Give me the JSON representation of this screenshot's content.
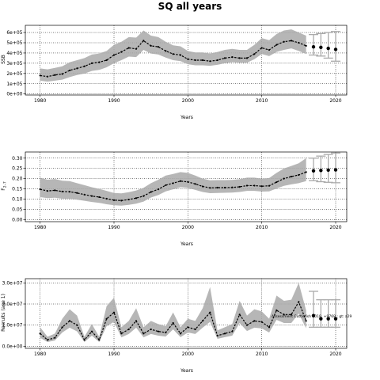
{
  "figure": {
    "title": "SQ all years"
  },
  "chart_data": [
    {
      "type": "line",
      "name": "ssb",
      "xlabel": "Years",
      "ylabel": "SSB",
      "xlim": [
        1978,
        2021.5
      ],
      "ylim": [
        -10000,
        670000
      ],
      "xticks": [
        1980,
        1990,
        2000,
        2010,
        2020
      ],
      "yticks": [
        0,
        100000,
        200000,
        300000,
        400000,
        500000,
        600000
      ],
      "ytick_labels": [
        "0e+00",
        "1e+05",
        "2e+05",
        "3e+05",
        "4e+05",
        "5e+05",
        "6e+05"
      ],
      "grid": true,
      "x": [
        1980,
        1981,
        1982,
        1983,
        1984,
        1985,
        1986,
        1987,
        1988,
        1989,
        1990,
        1991,
        1992,
        1993,
        1994,
        1995,
        1996,
        1997,
        1998,
        1999,
        2000,
        2001,
        2002,
        2003,
        2004,
        2005,
        2006,
        2007,
        2008,
        2009,
        2010,
        2011,
        2012,
        2013,
        2014,
        2015,
        2016
      ],
      "y": [
        180000,
        170000,
        185000,
        195000,
        230000,
        250000,
        270000,
        300000,
        310000,
        330000,
        380000,
        410000,
        450000,
        440000,
        520000,
        470000,
        460000,
        420000,
        390000,
        380000,
        340000,
        330000,
        330000,
        320000,
        330000,
        350000,
        360000,
        350000,
        350000,
        390000,
        450000,
        430000,
        480000,
        510000,
        520000,
        500000,
        470000
      ],
      "lower": [
        130000,
        120000,
        130000,
        140000,
        165000,
        185000,
        200000,
        225000,
        235000,
        260000,
        300000,
        330000,
        365000,
        360000,
        430000,
        395000,
        385000,
        355000,
        330000,
        320000,
        290000,
        280000,
        280000,
        275000,
        285000,
        300000,
        310000,
        305000,
        305000,
        340000,
        390000,
        370000,
        410000,
        430000,
        445000,
        420000,
        390000
      ],
      "upper": [
        250000,
        240000,
        255000,
        270000,
        310000,
        330000,
        350000,
        385000,
        395000,
        420000,
        480000,
        510000,
        555000,
        550000,
        620000,
        570000,
        555000,
        510000,
        475000,
        465000,
        420000,
        405000,
        405000,
        395000,
        410000,
        430000,
        440000,
        430000,
        430000,
        480000,
        545000,
        525000,
        585000,
        620000,
        630000,
        600000,
        570000
      ],
      "projection": {
        "x": [
          2017,
          2018,
          2019,
          2020
        ],
        "y": [
          460000,
          455000,
          445000,
          435000
        ],
        "lower": [
          380000,
          370000,
          350000,
          320000
        ],
        "upper": [
          580000,
          590000,
          600000,
          610000
        ]
      },
      "band_color": "#a9a9a9",
      "line_color": "#000000"
    },
    {
      "type": "line",
      "name": "fbar",
      "xlabel": "Years",
      "ylabel": "F",
      "ylabel_sub": "2–7",
      "xlim": [
        1978,
        2021.5
      ],
      "ylim": [
        -0.01,
        0.33
      ],
      "xticks": [
        1980,
        1990,
        2000,
        2010,
        2020
      ],
      "yticks": [
        0.0,
        0.05,
        0.1,
        0.15,
        0.2,
        0.25,
        0.3
      ],
      "ytick_labels": [
        "0.00",
        "0.05",
        "0.10",
        "0.15",
        "0.20",
        "0.25",
        "0.30"
      ],
      "grid": true,
      "x": [
        1980,
        1981,
        1982,
        1983,
        1984,
        1985,
        1986,
        1987,
        1988,
        1989,
        1990,
        1991,
        1992,
        1993,
        1994,
        1995,
        1996,
        1997,
        1998,
        1999,
        2000,
        2001,
        2002,
        2003,
        2004,
        2005,
        2006,
        2007,
        2008,
        2009,
        2010,
        2011,
        2012,
        2013,
        2014,
        2015,
        2016
      ],
      "y": [
        0.148,
        0.14,
        0.143,
        0.137,
        0.136,
        0.13,
        0.122,
        0.115,
        0.11,
        0.102,
        0.095,
        0.093,
        0.098,
        0.105,
        0.115,
        0.135,
        0.148,
        0.168,
        0.178,
        0.188,
        0.184,
        0.174,
        0.162,
        0.155,
        0.156,
        0.156,
        0.157,
        0.16,
        0.166,
        0.166,
        0.163,
        0.165,
        0.183,
        0.2,
        0.21,
        0.218,
        0.232
      ],
      "lower": [
        0.11,
        0.105,
        0.107,
        0.102,
        0.101,
        0.097,
        0.092,
        0.086,
        0.082,
        0.075,
        0.07,
        0.068,
        0.072,
        0.078,
        0.088,
        0.108,
        0.12,
        0.138,
        0.148,
        0.158,
        0.155,
        0.145,
        0.135,
        0.129,
        0.13,
        0.131,
        0.132,
        0.135,
        0.14,
        0.14,
        0.137,
        0.138,
        0.152,
        0.165,
        0.172,
        0.178,
        0.188
      ],
      "upper": [
        0.205,
        0.195,
        0.198,
        0.19,
        0.188,
        0.178,
        0.168,
        0.158,
        0.15,
        0.14,
        0.13,
        0.128,
        0.134,
        0.142,
        0.155,
        0.178,
        0.195,
        0.215,
        0.223,
        0.232,
        0.228,
        0.215,
        0.2,
        0.192,
        0.193,
        0.193,
        0.194,
        0.197,
        0.205,
        0.205,
        0.2,
        0.203,
        0.228,
        0.25,
        0.262,
        0.275,
        0.3
      ],
      "projection": {
        "x": [
          2017,
          2018,
          2019,
          2020
        ],
        "y": [
          0.238,
          0.24,
          0.242,
          0.243
        ],
        "lower": [
          0.19,
          0.185,
          0.182,
          0.18
        ],
        "upper": [
          0.3,
          0.31,
          0.318,
          0.325
        ]
      },
      "band_color": "#a9a9a9",
      "line_color": "#000000"
    },
    {
      "type": "line",
      "name": "recruits",
      "xlabel": "Years",
      "ylabel": "Recruits (age 1)",
      "xlim": [
        1978,
        2021.5
      ],
      "ylim": [
        -1000000,
        32000000
      ],
      "xticks": [
        1980,
        1990,
        2000,
        2010,
        2020
      ],
      "yticks": [
        0,
        10000000,
        20000000,
        30000000
      ],
      "ytick_labels": [
        "0.0e+00",
        "1.0e+07",
        "2.0e+07",
        "3.0e+07"
      ],
      "grid": true,
      "x": [
        1980,
        1981,
        1982,
        1983,
        1984,
        1985,
        1986,
        1987,
        1988,
        1989,
        1990,
        1991,
        1992,
        1993,
        1994,
        1995,
        1996,
        1997,
        1998,
        1999,
        2000,
        2001,
        2002,
        2003,
        2004,
        2005,
        2006,
        2007,
        2008,
        2009,
        2010,
        2011,
        2012,
        2013,
        2014,
        2015,
        2016
      ],
      "y": [
        6000000,
        3000000,
        4000000,
        9000000,
        12000000,
        10000000,
        3000000,
        7000000,
        3000000,
        13000000,
        16000000,
        6000000,
        8000000,
        12000000,
        6000000,
        8000000,
        7000000,
        6500000,
        11000000,
        6000000,
        9000000,
        8000000,
        12000000,
        16000000,
        5000000,
        6000000,
        7000000,
        15000000,
        10000000,
        12000000,
        11500000,
        9000000,
        17000000,
        15000000,
        15000000,
        21000000,
        12000000
      ],
      "lower": [
        4000000,
        2000000,
        2700000,
        6500000,
        8800000,
        7000000,
        2000000,
        5000000,
        2000000,
        9500000,
        11500000,
        4200000,
        5800000,
        8800000,
        4200000,
        5800000,
        5000000,
        4600000,
        8000000,
        4300000,
        6500000,
        5800000,
        8800000,
        11500000,
        3500000,
        4300000,
        5000000,
        11000000,
        7200000,
        8800000,
        8400000,
        6500000,
        12500000,
        11000000,
        11000000,
        15500000,
        8500000
      ],
      "upper": [
        9000000,
        4500000,
        6000000,
        13000000,
        17500000,
        14500000,
        4500000,
        10500000,
        4500000,
        19000000,
        23000000,
        9000000,
        12000000,
        18000000,
        9000000,
        12000000,
        10500000,
        9500000,
        16000000,
        9000000,
        13000000,
        12000000,
        18000000,
        28000000,
        7500000,
        9000000,
        10500000,
        21500000,
        14500000,
        17500000,
        16500000,
        13000000,
        24000000,
        21500000,
        22000000,
        30000000,
        17000000
      ],
      "projection": {
        "x": [
          2017,
          2018,
          2019,
          2020
        ],
        "y": [
          14500000,
          13000000,
          13000000,
          13000000
        ],
        "lower": [
          9000000,
          9000000,
          9000000,
          9000000
        ],
        "upper": [
          26000000,
          22000000,
          22000000,
          22000000
        ]
      },
      "annotation": "Assessment Cuttlefish 2018, +9768 ; gt: a29",
      "band_color": "#a9a9a9",
      "line_color": "#000000"
    }
  ]
}
